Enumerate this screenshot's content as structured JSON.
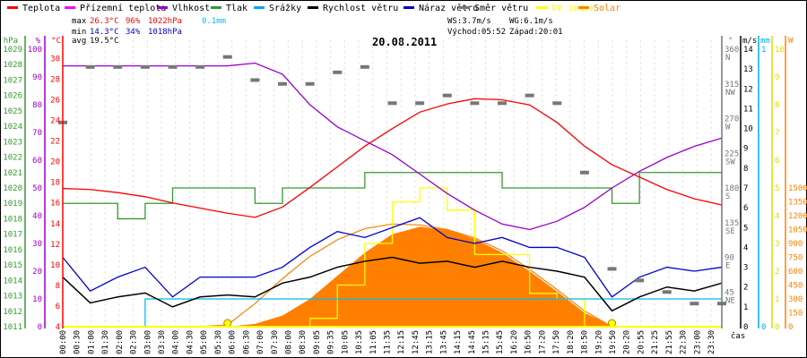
{
  "chart_data": {
    "type": "line",
    "title": "20.08.2011",
    "xlabel": "čas",
    "legend": [
      {
        "label": "Teplota",
        "color": "#ff0000"
      },
      {
        "label": "Přízemní teplota",
        "color": "#ff00ff"
      },
      {
        "label": "Vlhkost",
        "color": "#9900cc"
      },
      {
        "label": "Tlak",
        "color": "#339933"
      },
      {
        "label": "Srážky",
        "color": "#00aaee"
      },
      {
        "label": "Rychlost větru",
        "color": "#000000"
      },
      {
        "label": "Náraz větru",
        "color": "#0000cc"
      },
      {
        "label": "Směr větru",
        "color": "#777777"
      },
      {
        "label": "UV index",
        "color": "#ffff00"
      },
      {
        "label": "Solar",
        "color": "#ff8000"
      }
    ],
    "legend_placement": "top",
    "stats": {
      "max_label": "max",
      "max_temp": "26.3°C",
      "max_hum": "96%",
      "max_press": "1022hPa",
      "max_rain": "0.1mm",
      "min_label": "min",
      "min_temp": "14.3°C",
      "min_hum": "34%",
      "min_press": "1018hPa",
      "avg_label": "avg",
      "avg_temp": "19.5°C",
      "ws": "WS:3.7m/s",
      "wg": "WG:6.1m/s",
      "sunrise": "Východ:05:52",
      "sunset": "Západ:20:01"
    },
    "x_hours": [
      0,
      1,
      2,
      3,
      4,
      5,
      6,
      7,
      8,
      9,
      10,
      11,
      12,
      13,
      14,
      15,
      16,
      17,
      18,
      19,
      20,
      21,
      22,
      23,
      24
    ],
    "x_ticks": [
      "00:00",
      "00:30",
      "01:00",
      "01:30",
      "02:00",
      "02:30",
      "03:00",
      "03:30",
      "04:00",
      "04:30",
      "05:00",
      "05:30",
      "06:00",
      "06:30",
      "07:00",
      "07:30",
      "08:00",
      "08:30",
      "09:05",
      "09:35",
      "10:05",
      "10:35",
      "11:05",
      "11:35",
      "12:15",
      "12:45",
      "13:15",
      "13:45",
      "14:15",
      "14:45",
      "15:15",
      "15:45",
      "16:20",
      "16:50",
      "17:20",
      "17:50",
      "18:20",
      "18:50",
      "19:20",
      "19:50",
      "20:20",
      "20:55",
      "21:25",
      "21:55",
      "22:30",
      "23:00",
      "23:30"
    ],
    "series": [
      {
        "name": "Teplota",
        "unit": "°C",
        "values": [
          17.4,
          17.3,
          17.0,
          16.6,
          16.0,
          15.5,
          15.0,
          14.6,
          15.6,
          17.5,
          19.5,
          21.5,
          23.2,
          24.8,
          25.6,
          26.1,
          26.0,
          25.5,
          23.8,
          21.5,
          19.7,
          18.5,
          17.3,
          16.4,
          15.8
        ]
      },
      {
        "name": "Vlhkost",
        "unit": "%",
        "values": [
          94,
          94,
          94,
          94,
          94,
          94,
          94,
          95,
          91,
          80,
          72,
          67,
          62,
          55,
          48,
          42,
          37,
          35,
          38,
          43,
          50,
          56,
          61,
          65,
          68
        ]
      },
      {
        "name": "Tlak",
        "unit": "hPa",
        "values": [
          1019,
          1019,
          1018,
          1019,
          1020,
          1020,
          1020,
          1019,
          1020,
          1020,
          1020,
          1021,
          1021,
          1021,
          1021,
          1021,
          1020,
          1020,
          1020,
          1020,
          1019,
          1021,
          1021,
          1021,
          1021
        ]
      },
      {
        "name": "Rychlost větru",
        "unit": "m/s",
        "values": [
          2.5,
          1.2,
          1.5,
          1.7,
          1.0,
          1.5,
          1.6,
          1.5,
          2.2,
          2.5,
          3.0,
          3.3,
          3.5,
          3.2,
          3.3,
          3.0,
          3.3,
          3.0,
          2.8,
          2.5,
          0.8,
          1.5,
          2.0,
          1.8,
          2.2
        ]
      },
      {
        "name": "Náraz větru",
        "unit": "m/s",
        "values": [
          3.5,
          1.8,
          2.5,
          3.0,
          1.5,
          2.5,
          2.5,
          2.5,
          3.0,
          4.0,
          4.8,
          4.5,
          5.0,
          5.5,
          4.5,
          4.2,
          4.5,
          4.0,
          4.0,
          3.5,
          1.5,
          2.5,
          3.0,
          2.8,
          3.0
        ]
      },
      {
        "name": "Srážky",
        "unit": "mm",
        "values": [
          0,
          0,
          0,
          0.1,
          0.1,
          0.1,
          0.1,
          0.1,
          0.1,
          0.1,
          0.1,
          0.1,
          0.1,
          0.1,
          0.1,
          0.1,
          0.1,
          0.1,
          0.1,
          0.1,
          0.1,
          0.1,
          0.1,
          0.1,
          0.1
        ]
      },
      {
        "name": "UV index",
        "unit": "",
        "values": [
          0,
          0,
          0,
          0,
          0,
          0,
          0,
          0,
          0,
          0.3,
          1.5,
          3.0,
          4.5,
          5.0,
          4.2,
          2.6,
          2.6,
          1.2,
          1.0,
          0,
          0,
          0,
          0,
          0,
          0
        ]
      },
      {
        "name": "Solar",
        "unit": "W",
        "values": [
          0,
          0,
          0,
          0,
          0,
          0,
          0,
          30,
          120,
          300,
          550,
          800,
          1000,
          1080,
          1050,
          950,
          800,
          600,
          380,
          150,
          10,
          0,
          0,
          0,
          0
        ]
      },
      {
        "name": "Solar max",
        "unit": "W",
        "values": [
          0,
          0,
          0,
          0,
          0,
          0,
          20,
          250,
          520,
          760,
          940,
          1060,
          1110,
          1100,
          1050,
          960,
          820,
          620,
          400,
          170,
          0,
          0,
          0,
          0,
          0
        ]
      },
      {
        "name": "Směr větru",
        "unit": "°",
        "values": [
          265,
          337,
          337,
          337,
          337,
          337,
          350,
          320,
          315,
          315,
          330,
          337,
          290,
          290,
          300,
          290,
          290,
          300,
          290,
          200,
          75,
          60,
          45,
          30,
          30
        ]
      }
    ],
    "axes": {
      "hpa": {
        "label": "hPa",
        "range": [
          1011,
          1029
        ],
        "ticks": [
          1011,
          1012,
          1013,
          1014,
          1015,
          1016,
          1017,
          1018,
          1019,
          1020,
          1021,
          1022,
          1023,
          1024,
          1025,
          1026,
          1027,
          1028,
          1029
        ]
      },
      "pct": {
        "label": "%",
        "range": [
          0,
          100
        ],
        "ticks": [
          0,
          10,
          20,
          30,
          40,
          50,
          60,
          70,
          80,
          90,
          100
        ]
      },
      "temp": {
        "label": "°C",
        "range": [
          4,
          30.9
        ],
        "ticks": [
          4,
          6,
          8,
          10,
          12,
          14,
          16,
          18,
          20,
          22,
          24,
          26,
          28,
          30
        ]
      },
      "dir": {
        "label": "°",
        "range": [
          0,
          360
        ],
        "ticks": [
          45,
          90,
          135,
          180,
          225,
          270,
          315,
          360
        ],
        "names": [
          "NE",
          "E",
          "SE",
          "S",
          "SW",
          "W",
          "NW",
          "N"
        ]
      },
      "wind": {
        "label": "m/s",
        "range": [
          0,
          14
        ],
        "ticks": [
          0,
          1,
          2,
          3,
          4,
          5,
          6,
          7,
          8,
          9,
          10,
          11,
          12,
          13,
          14
        ]
      },
      "rain": {
        "label": "mm",
        "range": [
          0,
          1
        ],
        "ticks": [
          0,
          1
        ]
      },
      "uv": {
        "label": "",
        "range": [
          0,
          10
        ],
        "ticks": [
          0,
          1,
          2,
          3,
          4,
          5,
          6,
          7,
          8,
          9,
          10
        ]
      },
      "solar": {
        "label": "W",
        "range": [
          0,
          3000
        ],
        "ticks": [
          0,
          150,
          300,
          450,
          600,
          750,
          900,
          1050,
          1200,
          1350,
          1500
        ]
      }
    },
    "sun_markers_hours": [
      6.0,
      20.0
    ],
    "grid": true
  }
}
